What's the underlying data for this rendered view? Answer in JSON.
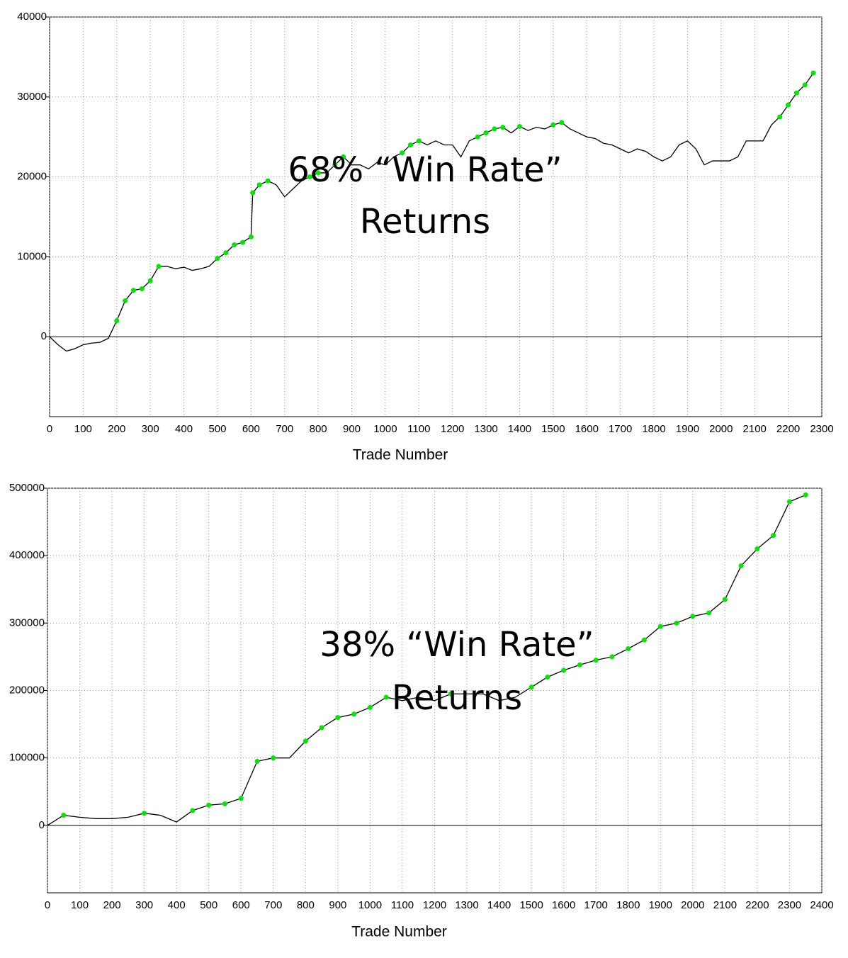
{
  "chart_data": [
    {
      "type": "line",
      "xlabel": "Trade Number",
      "annotation": [
        "68% “Win Rate”",
        "Returns"
      ],
      "x": [
        0,
        25,
        50,
        75,
        100,
        125,
        150,
        175,
        200,
        225,
        250,
        275,
        300,
        325,
        350,
        375,
        400,
        425,
        450,
        475,
        500,
        525,
        550,
        575,
        600,
        605,
        625,
        650,
        675,
        700,
        725,
        750,
        775,
        800,
        825,
        850,
        875,
        900,
        925,
        950,
        975,
        1000,
        1025,
        1050,
        1075,
        1100,
        1125,
        1150,
        1175,
        1200,
        1225,
        1250,
        1275,
        1300,
        1325,
        1350,
        1375,
        1400,
        1425,
        1450,
        1475,
        1500,
        1525,
        1550,
        1575,
        1600,
        1625,
        1650,
        1675,
        1700,
        1725,
        1750,
        1775,
        1800,
        1825,
        1850,
        1875,
        1900,
        1925,
        1950,
        1975,
        2000,
        2025,
        2050,
        2075,
        2100,
        2125,
        2150,
        2175,
        2200,
        2225,
        2250,
        2275
      ],
      "series": [
        {
          "color": "#000000",
          "values": [
            0,
            -1000,
            -1800,
            -1500,
            -1000,
            -800,
            -700,
            -200,
            2000,
            4500,
            5800,
            6000,
            7000,
            8800,
            8800,
            8500,
            8700,
            8300,
            8500,
            8800,
            9800,
            10500,
            11500,
            11800,
            12500,
            18000,
            19000,
            19500,
            19000,
            17500,
            18500,
            19500,
            20000,
            20500,
            20500,
            21500,
            22500,
            21500,
            21500,
            21000,
            21800,
            21500,
            22500,
            23000,
            24000,
            24500,
            24000,
            24500,
            24000,
            24000,
            22500,
            24500,
            25000,
            25500,
            26000,
            26200,
            25500,
            26300,
            25800,
            26200,
            26000,
            26500,
            26800,
            26000,
            25500,
            25000,
            24800,
            24200,
            24000,
            23500,
            23000,
            23500,
            23200,
            22500,
            22000,
            22500,
            24000,
            24500,
            23500,
            21500,
            22000,
            22000,
            22000,
            22500,
            24500,
            24500,
            24500,
            26500,
            27500,
            29000,
            30500,
            31500,
            33000
          ]
        }
      ],
      "highlight_color": "#00e600",
      "xlim": [
        0,
        2300
      ],
      "ylim": [
        -10000,
        40000
      ],
      "xticks": [
        0,
        100,
        200,
        300,
        400,
        500,
        600,
        700,
        800,
        900,
        1000,
        1100,
        1200,
        1300,
        1400,
        1500,
        1600,
        1700,
        1800,
        1900,
        2000,
        2100,
        2200,
        2300
      ],
      "yticks": [
        0,
        10000,
        20000,
        30000,
        40000
      ],
      "grid": true
    },
    {
      "type": "line",
      "xlabel": "Trade Number",
      "annotation": [
        "38% “Win Rate”",
        "Returns"
      ],
      "x": [
        0,
        50,
        100,
        150,
        200,
        250,
        300,
        350,
        400,
        450,
        500,
        550,
        600,
        650,
        700,
        750,
        800,
        850,
        900,
        950,
        1000,
        1050,
        1100,
        1150,
        1200,
        1250,
        1300,
        1350,
        1400,
        1450,
        1500,
        1550,
        1600,
        1650,
        1700,
        1750,
        1800,
        1850,
        1900,
        1950,
        2000,
        2050,
        2100,
        2150,
        2200,
        2250,
        2300,
        2350
      ],
      "series": [
        {
          "color": "#000000",
          "values": [
            0,
            15000,
            12000,
            10000,
            10000,
            12000,
            18000,
            15000,
            5000,
            22000,
            30000,
            32000,
            40000,
            95000,
            100000,
            100000,
            125000,
            145000,
            160000,
            165000,
            175000,
            190000,
            185000,
            190000,
            185000,
            195000,
            195000,
            195000,
            185000,
            190000,
            205000,
            220000,
            230000,
            238000,
            245000,
            250000,
            262000,
            275000,
            295000,
            300000,
            310000,
            315000,
            335000,
            385000,
            410000,
            430000,
            480000,
            490000
          ]
        }
      ],
      "highlight_color": "#00e600",
      "xlim": [
        0,
        2400
      ],
      "ylim": [
        -100000,
        500000
      ],
      "xticks": [
        0,
        100,
        200,
        300,
        400,
        500,
        600,
        700,
        800,
        900,
        1000,
        1100,
        1200,
        1300,
        1400,
        1500,
        1600,
        1700,
        1800,
        1900,
        2000,
        2100,
        2200,
        2300,
        2400
      ],
      "yticks": [
        0,
        100000,
        200000,
        300000,
        400000,
        500000
      ],
      "grid": true
    }
  ]
}
